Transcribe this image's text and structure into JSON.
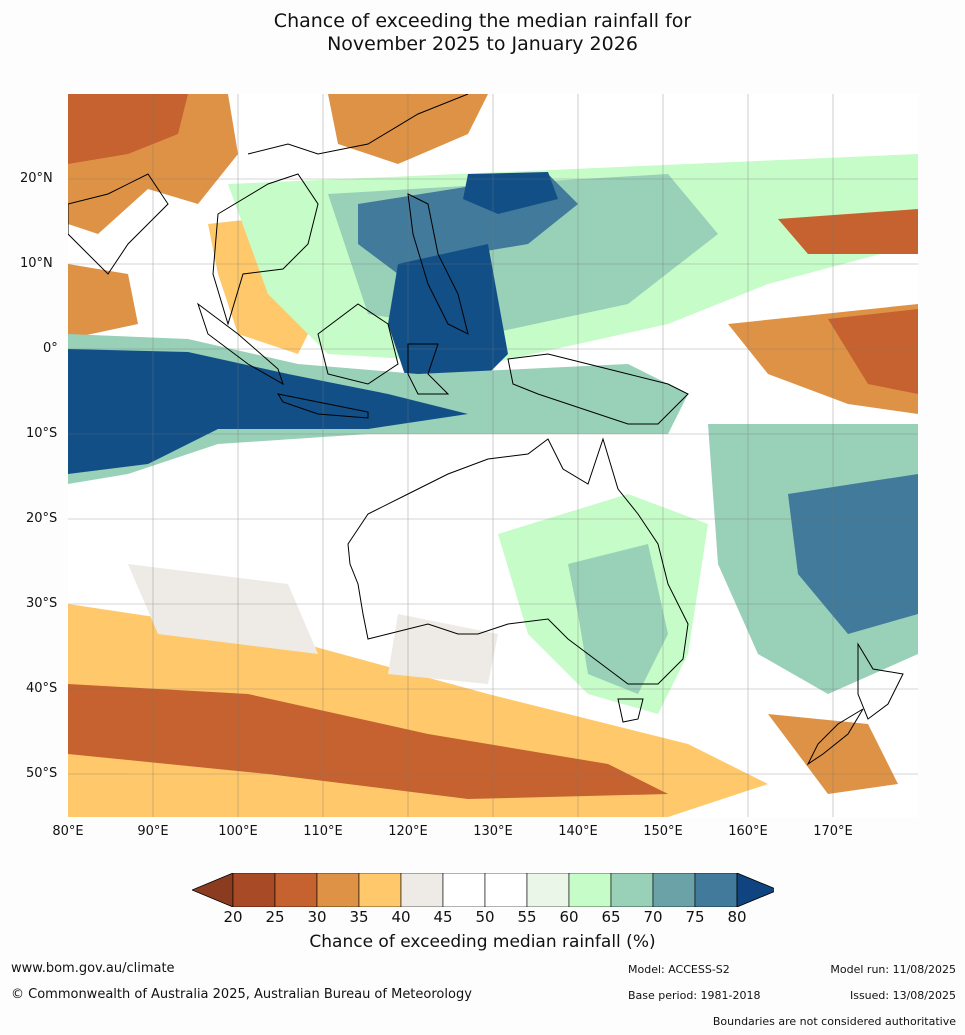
{
  "title": {
    "line1": "Chance of exceeding the median rainfall for",
    "line2": "November 2025 to January 2026"
  },
  "map": {
    "lat_labels": [
      "20°N",
      "10°N",
      "0°",
      "10°S",
      "20°S",
      "30°S",
      "40°S",
      "50°S"
    ],
    "lon_labels": [
      "80°E",
      "90°E",
      "100°E",
      "110°E",
      "120°E",
      "130°E",
      "140°E",
      "150°E",
      "160°E",
      "170°E"
    ],
    "lon_range": [
      80,
      180
    ],
    "lat_range": [
      -55,
      30
    ]
  },
  "colorbar": {
    "ticks": [
      "20",
      "25",
      "30",
      "35",
      "40",
      "45",
      "50",
      "55",
      "60",
      "65",
      "70",
      "75",
      "80"
    ],
    "colors": [
      "#a84a25",
      "#c5622f",
      "#de9246",
      "#fec86b",
      "#eeebe6",
      "#ffffff",
      "#ffffff",
      "#e9f6e8",
      "#c6fcc8",
      "#98d0b8",
      "#6aa2a7",
      "#417a9a",
      "#124f87"
    ],
    "low_color": "#8b3c20",
    "high_color": "#0f4480",
    "label": "Chance of exceeding median rainfall (%)"
  },
  "footer": {
    "website": "www.bom.gov.au/climate",
    "copyright": "© Commonwealth of Australia 2025, Australian Bureau of Meteorology",
    "model": "Model: ACCESS-S2",
    "base_period": "Base period: 1981-2018",
    "model_run": "Model run: 11/08/2025",
    "issued": "Issued: 13/08/2025",
    "disclaimer": "Boundaries are not considered authoritative"
  }
}
